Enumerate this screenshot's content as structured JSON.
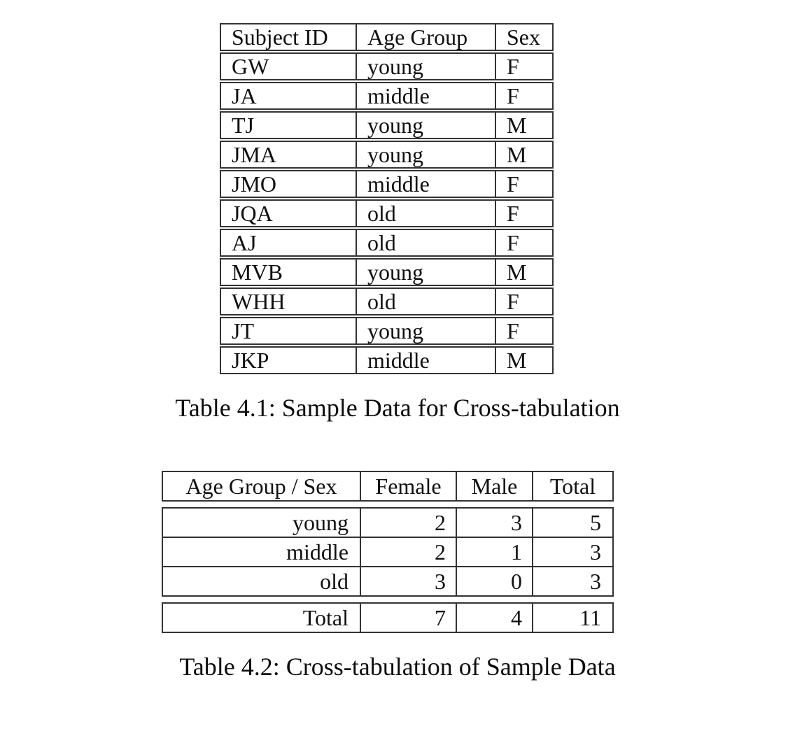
{
  "page": {
    "background_color": "#ffffff",
    "text_color": "#111111",
    "rule_color": "#333333"
  },
  "table1": {
    "caption": "Table 4.1: Sample Data for Cross-tabulation",
    "columns": [
      "Subject ID",
      "Age Group",
      "Sex"
    ],
    "rows": [
      [
        "GW",
        "young",
        "F"
      ],
      [
        "JA",
        "middle",
        "F"
      ],
      [
        "TJ",
        "young",
        "M"
      ],
      [
        "JMA",
        "young",
        "M"
      ],
      [
        "JMO",
        "middle",
        "F"
      ],
      [
        "JQA",
        "old",
        "F"
      ],
      [
        "AJ",
        "old",
        "F"
      ],
      [
        "MVB",
        "young",
        "M"
      ],
      [
        "WHH",
        "old",
        "F"
      ],
      [
        "JT",
        "young",
        "F"
      ],
      [
        "JKP",
        "middle",
        "M"
      ]
    ]
  },
  "table2": {
    "caption": "Table 4.2: Cross-tabulation of Sample Data",
    "columns": [
      "Age Group / Sex",
      "Female",
      "Male",
      "Total"
    ],
    "rows": [
      [
        "young",
        "2",
        "3",
        "5"
      ],
      [
        "middle",
        "2",
        "1",
        "3"
      ],
      [
        "old",
        "3",
        "0",
        "3"
      ]
    ],
    "total_row": [
      "Total",
      "7",
      "4",
      "11"
    ]
  }
}
